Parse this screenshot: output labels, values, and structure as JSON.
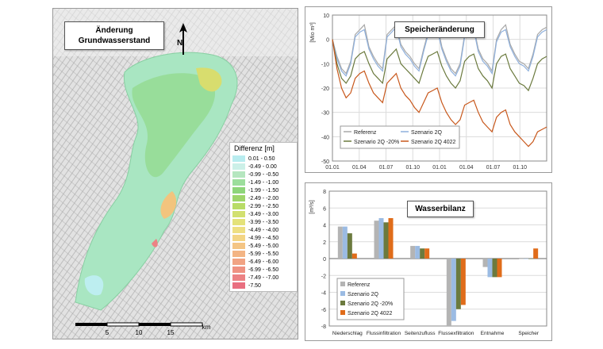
{
  "map": {
    "title_line1": "Änderung",
    "title_line2": "Grundwasserstand",
    "north_label": "N",
    "legend_title": "Differenz [m]",
    "legend": [
      {
        "label": "0.01 - 0.50",
        "color": "#b8ecef"
      },
      {
        "label": "-0.49 - 0.00",
        "color": "#ccf0e8"
      },
      {
        "label": "-0.99 - -0.50",
        "color": "#b5e6bf"
      },
      {
        "label": "-1.49 - -1.00",
        "color": "#9cde9c"
      },
      {
        "label": "-1.99 - -1.50",
        "color": "#8ed57a"
      },
      {
        "label": "-2.49 - -2.00",
        "color": "#9ed56a"
      },
      {
        "label": "-2.99 - -2.50",
        "color": "#b8dc66"
      },
      {
        "label": "-3.49 - -3.00",
        "color": "#d2e070"
      },
      {
        "label": "-3.99 - -3.50",
        "color": "#e4e27a"
      },
      {
        "label": "-4.49 - -4.00",
        "color": "#eedf82"
      },
      {
        "label": "-4.99 - -4.50",
        "color": "#f3d584"
      },
      {
        "label": "-5.49 - -5.00",
        "color": "#f4c584"
      },
      {
        "label": "-5.99 - -5.50",
        "color": "#f3b484"
      },
      {
        "label": "-6.49 - -6.00",
        "color": "#f1a383"
      },
      {
        "label": "-6.99 - -6.50",
        "color": "#ef9282"
      },
      {
        "label": "-7.49 - -7.00",
        "color": "#ec8284"
      },
      {
        "label": "-7.50",
        "color": "#e96f80"
      }
    ],
    "scale": {
      "labels": [
        "5",
        "10",
        "15"
      ],
      "unit": "km"
    }
  },
  "chart_data": [
    {
      "type": "line",
      "title": "Speicheränderung",
      "ylabel": "[Mio m³]",
      "ylim": [
        -50,
        10
      ],
      "yticks": [
        10,
        0,
        -10,
        -20,
        -30,
        -40,
        -50
      ],
      "x_tick_labels": [
        "01.01",
        "01.04",
        "01.07",
        "01.10",
        "01.01",
        "01.04",
        "01.07",
        "01.10"
      ],
      "grid": true,
      "legend_position": "bottom-left",
      "series": [
        {
          "name": "Referenz",
          "color": "#a8a8a8",
          "values": [
            0,
            -7,
            -12,
            -14,
            -9,
            2,
            4,
            6,
            -3,
            -7,
            -10,
            -12,
            2,
            4,
            6,
            -2,
            -5,
            -7,
            -10,
            -12,
            -4,
            3,
            5,
            6,
            -3,
            -8,
            -12,
            -14,
            -10,
            2,
            4,
            5,
            -4,
            -8,
            -10,
            -13,
            0,
            4,
            6,
            -2,
            -6,
            -9,
            -10,
            -12,
            -6,
            2,
            4,
            5
          ]
        },
        {
          "name": "Szenario 2Q",
          "color": "#8fb0dc",
          "values": [
            0,
            -8,
            -13,
            -15,
            -10,
            1,
            3,
            4,
            -4,
            -8,
            -11,
            -13,
            1,
            3,
            5,
            -3,
            -6,
            -8,
            -11,
            -13,
            -5,
            2,
            3,
            4,
            -4,
            -9,
            -13,
            -15,
            -11,
            1,
            3,
            4,
            -5,
            -9,
            -11,
            -14,
            -1,
            3,
            4,
            -3,
            -7,
            -10,
            -11,
            -13,
            -7,
            1,
            3,
            4
          ]
        },
        {
          "name": "Szenario 2Q -20%",
          "color": "#6b7a3e",
          "values": [
            0,
            -10,
            -16,
            -18,
            -15,
            -8,
            -6,
            -5,
            -10,
            -14,
            -16,
            -18,
            -8,
            -6,
            -4,
            -10,
            -12,
            -14,
            -16,
            -18,
            -12,
            -7,
            -6,
            -5,
            -11,
            -15,
            -18,
            -20,
            -17,
            -9,
            -7,
            -6,
            -12,
            -15,
            -17,
            -20,
            -10,
            -7,
            -6,
            -12,
            -15,
            -18,
            -19,
            -21,
            -16,
            -10,
            -8,
            -7
          ]
        },
        {
          "name": "Szenario 2Q 4022",
          "color": "#c8581c",
          "values": [
            0,
            -12,
            -20,
            -24,
            -22,
            -16,
            -14,
            -13,
            -18,
            -22,
            -24,
            -26,
            -18,
            -16,
            -14,
            -20,
            -23,
            -25,
            -28,
            -30,
            -26,
            -22,
            -21,
            -20,
            -26,
            -30,
            -33,
            -35,
            -33,
            -27,
            -26,
            -25,
            -30,
            -34,
            -36,
            -38,
            -32,
            -30,
            -29,
            -35,
            -38,
            -40,
            -42,
            -44,
            -42,
            -38,
            -37,
            -36
          ]
        }
      ]
    },
    {
      "type": "bar",
      "title": "Wasserbilanz",
      "ylabel": "[m³/s]",
      "ylim": [
        -8,
        8
      ],
      "yticks": [
        8,
        6,
        4,
        2,
        0,
        -2,
        -4,
        -6,
        -8
      ],
      "categories": [
        "Niederschlag",
        "Flussinfiltration",
        "Seitenzufluss",
        "Flussexfiltration",
        "Entnahme",
        "Speicher"
      ],
      "grid": true,
      "legend_position": "bottom-left",
      "series": [
        {
          "name": "Referenz",
          "color": "#b4b4b4",
          "values": [
            3.8,
            4.5,
            1.5,
            -8.0,
            -1.0,
            0.0
          ]
        },
        {
          "name": "Szenario 2Q",
          "color": "#9bbbe3",
          "values": [
            3.8,
            4.8,
            1.5,
            -7.4,
            -2.2,
            0.0
          ]
        },
        {
          "name": "Szenario 2Q -20%",
          "color": "#6b7a3e",
          "values": [
            3.0,
            4.3,
            1.2,
            -6.0,
            -2.2,
            0.0
          ]
        },
        {
          "name": "Szenario 2Q 4022",
          "color": "#e06c1a",
          "values": [
            0.6,
            4.8,
            1.2,
            -5.5,
            -2.2,
            1.2
          ]
        }
      ]
    }
  ]
}
